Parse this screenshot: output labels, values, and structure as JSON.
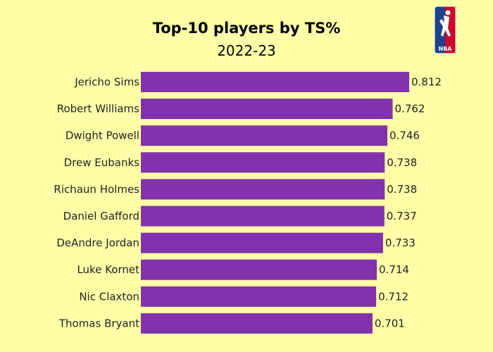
{
  "chart_data": {
    "type": "bar",
    "orientation": "horizontal",
    "title": "Top-10 players by TS%",
    "subtitle": "2022-23",
    "categories": [
      "Jericho Sims",
      "Robert Williams",
      "Dwight Powell",
      "Drew Eubanks",
      "Richaun Holmes",
      "Daniel Gafford",
      "DeAndre Jordan",
      "Luke Kornet",
      "Nic Claxton",
      "Thomas Bryant"
    ],
    "values": [
      0.812,
      0.762,
      0.746,
      0.738,
      0.738,
      0.737,
      0.733,
      0.714,
      0.712,
      0.701
    ],
    "value_labels": [
      "0.812",
      "0.762",
      "0.746",
      "0.738",
      "0.738",
      "0.737",
      "0.733",
      "0.714",
      "0.712",
      "0.701"
    ],
    "xlim": [
      0,
      0.812
    ],
    "grid": false,
    "legend": false,
    "bar_color": "#8232aa",
    "background_color": "#ffffa8"
  },
  "logo": {
    "text": "NBA",
    "icon": "nba-logo-icon"
  }
}
